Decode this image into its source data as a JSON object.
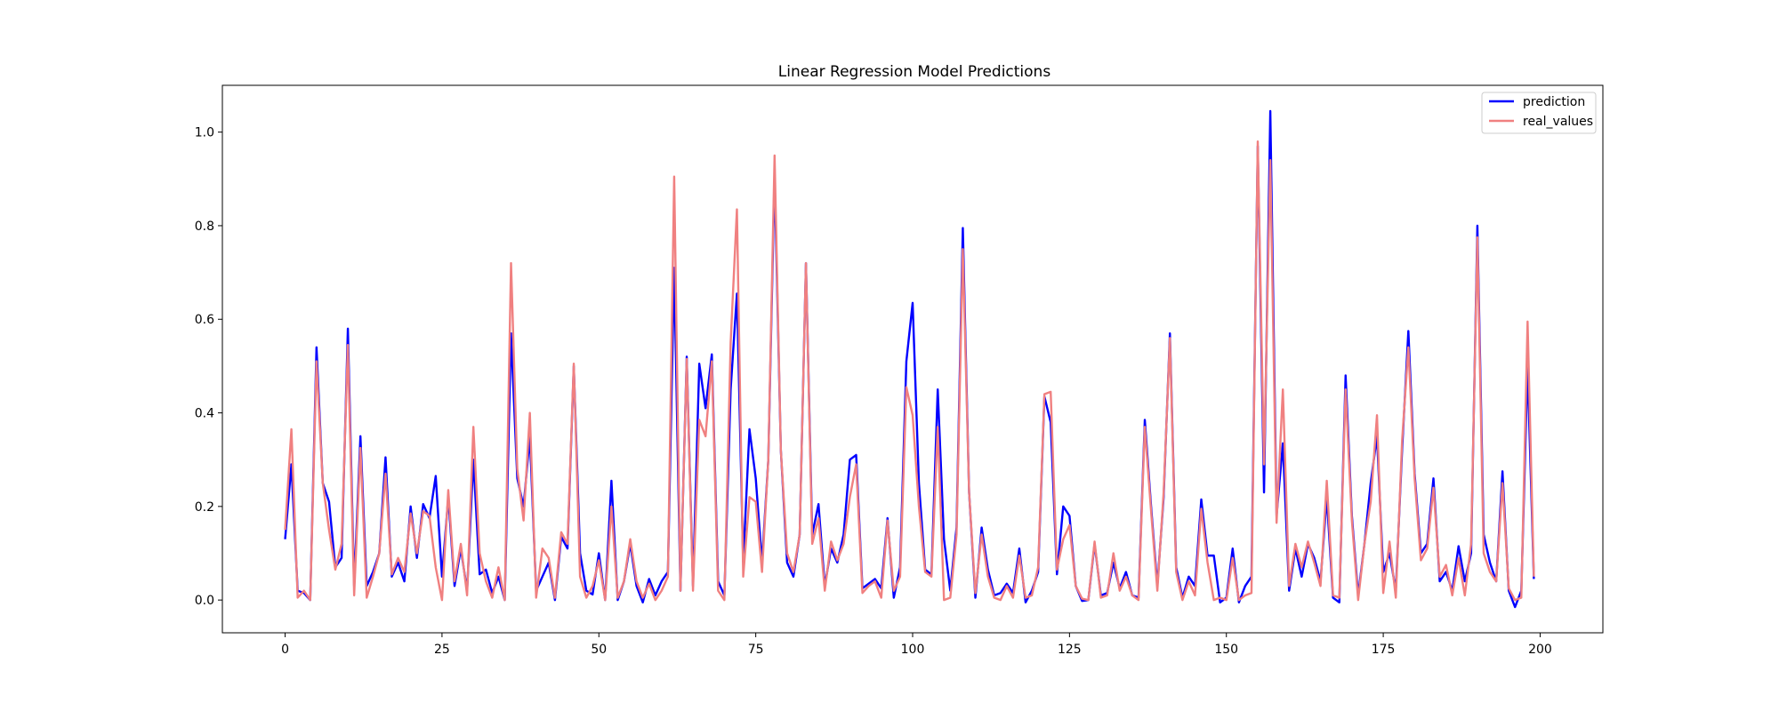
{
  "chart_data": {
    "type": "line",
    "title": "Linear Regression Model Predictions",
    "xlabel": "",
    "ylabel": "",
    "xlim": [
      -10,
      210
    ],
    "ylim": [
      -0.07,
      1.1
    ],
    "xticks": [
      0,
      25,
      50,
      75,
      100,
      125,
      150,
      175,
      200
    ],
    "yticks": [
      0.0,
      0.2,
      0.4,
      0.6,
      0.8,
      1.0
    ],
    "xtick_labels": [
      "0",
      "25",
      "50",
      "75",
      "100",
      "125",
      "150",
      "175",
      "200"
    ],
    "ytick_labels": [
      "0.0",
      "0.2",
      "0.4",
      "0.6",
      "0.8",
      "1.0"
    ],
    "grid": false,
    "legend_position": "top-right",
    "series": [
      {
        "name": "prediction",
        "color": "#0000ff",
        "values": [
          0.13,
          0.29,
          0.02,
          0.015,
          0.0,
          0.54,
          0.25,
          0.21,
          0.07,
          0.09,
          0.58,
          0.03,
          0.35,
          0.03,
          0.06,
          0.1,
          0.305,
          0.05,
          0.08,
          0.04,
          0.2,
          0.09,
          0.205,
          0.175,
          0.265,
          0.05,
          0.22,
          0.03,
          0.11,
          0.02,
          0.3,
          0.055,
          0.065,
          0.015,
          0.05,
          0.0,
          0.57,
          0.26,
          0.2,
          0.35,
          0.02,
          0.05,
          0.08,
          0.0,
          0.135,
          0.11,
          0.5,
          0.1,
          0.02,
          0.012,
          0.1,
          0.0,
          0.255,
          0.0,
          0.04,
          0.12,
          0.03,
          -0.005,
          0.045,
          0.01,
          0.04,
          0.06,
          0.71,
          0.02,
          0.52,
          0.03,
          0.505,
          0.41,
          0.525,
          0.04,
          0.01,
          0.45,
          0.655,
          0.08,
          0.365,
          0.26,
          0.08,
          0.3,
          0.91,
          0.32,
          0.08,
          0.05,
          0.14,
          0.72,
          0.14,
          0.205,
          0.03,
          0.11,
          0.08,
          0.14,
          0.3,
          0.31,
          0.025,
          0.035,
          0.045,
          0.025,
          0.175,
          0.005,
          0.07,
          0.51,
          0.635,
          0.25,
          0.065,
          0.055,
          0.45,
          0.13,
          0.02,
          0.155,
          0.795,
          0.23,
          0.005,
          0.155,
          0.065,
          0.01,
          0.015,
          0.035,
          0.015,
          0.11,
          -0.005,
          0.02,
          0.06,
          0.435,
          0.38,
          0.055,
          0.2,
          0.18,
          0.03,
          -0.002,
          0.0,
          0.12,
          0.01,
          0.015,
          0.08,
          0.025,
          0.06,
          0.01,
          0.005,
          0.385,
          0.2,
          0.03,
          0.22,
          0.57,
          0.07,
          0.005,
          0.05,
          0.03,
          0.215,
          0.095,
          0.095,
          -0.005,
          0.005,
          0.11,
          -0.005,
          0.03,
          0.05,
          0.97,
          0.23,
          1.045,
          0.18,
          0.335,
          0.02,
          0.11,
          0.05,
          0.12,
          0.09,
          0.04,
          0.22,
          0.005,
          -0.005,
          0.48,
          0.18,
          0.01,
          0.12,
          0.25,
          0.35,
          0.06,
          0.1,
          0.02,
          0.32,
          0.575,
          0.27,
          0.1,
          0.12,
          0.26,
          0.04,
          0.06,
          0.02,
          0.115,
          0.04,
          0.1,
          0.8,
          0.14,
          0.08,
          0.04,
          0.275,
          0.02,
          -0.015,
          0.02,
          0.5,
          0.045
        ]
      },
      {
        "name": "real_values",
        "color": "#f08080",
        "values": [
          0.15,
          0.365,
          0.005,
          0.02,
          0.0,
          0.51,
          0.25,
          0.15,
          0.065,
          0.12,
          0.545,
          0.01,
          0.325,
          0.005,
          0.05,
          0.1,
          0.27,
          0.055,
          0.09,
          0.06,
          0.185,
          0.1,
          0.19,
          0.18,
          0.07,
          0.0,
          0.235,
          0.04,
          0.12,
          0.01,
          0.37,
          0.1,
          0.04,
          0.005,
          0.07,
          0.0,
          0.72,
          0.28,
          0.17,
          0.4,
          0.005,
          0.11,
          0.09,
          0.005,
          0.145,
          0.12,
          0.505,
          0.05,
          0.005,
          0.03,
          0.085,
          0.0,
          0.2,
          0.005,
          0.04,
          0.13,
          0.04,
          0.005,
          0.035,
          0.0,
          0.02,
          0.05,
          0.905,
          0.02,
          0.515,
          0.02,
          0.385,
          0.35,
          0.51,
          0.02,
          0.0,
          0.55,
          0.835,
          0.05,
          0.22,
          0.21,
          0.06,
          0.3,
          0.95,
          0.32,
          0.1,
          0.06,
          0.14,
          0.72,
          0.12,
          0.175,
          0.02,
          0.125,
          0.085,
          0.12,
          0.22,
          0.29,
          0.015,
          0.03,
          0.04,
          0.005,
          0.17,
          0.02,
          0.05,
          0.455,
          0.395,
          0.2,
          0.06,
          0.05,
          0.37,
          0.0,
          0.005,
          0.14,
          0.75,
          0.23,
          0.015,
          0.14,
          0.05,
          0.005,
          0.0,
          0.03,
          0.005,
          0.095,
          0.005,
          0.01,
          0.07,
          0.44,
          0.445,
          0.065,
          0.13,
          0.16,
          0.03,
          0.003,
          0.0,
          0.125,
          0.005,
          0.01,
          0.1,
          0.02,
          0.05,
          0.01,
          0.0,
          0.37,
          0.19,
          0.02,
          0.23,
          0.56,
          0.06,
          0.0,
          0.04,
          0.01,
          0.195,
          0.08,
          0.0,
          0.005,
          0.0,
          0.09,
          0.0,
          0.01,
          0.015,
          0.98,
          0.29,
          0.94,
          0.165,
          0.45,
          0.03,
          0.12,
          0.07,
          0.125,
          0.08,
          0.03,
          0.255,
          0.01,
          0.005,
          0.45,
          0.17,
          0.0,
          0.12,
          0.21,
          0.395,
          0.015,
          0.125,
          0.005,
          0.34,
          0.54,
          0.26,
          0.085,
          0.11,
          0.24,
          0.05,
          0.075,
          0.01,
          0.09,
          0.01,
          0.12,
          0.775,
          0.1,
          0.06,
          0.04,
          0.25,
          0.025,
          0.0,
          0.005,
          0.595,
          0.05
        ]
      }
    ]
  }
}
